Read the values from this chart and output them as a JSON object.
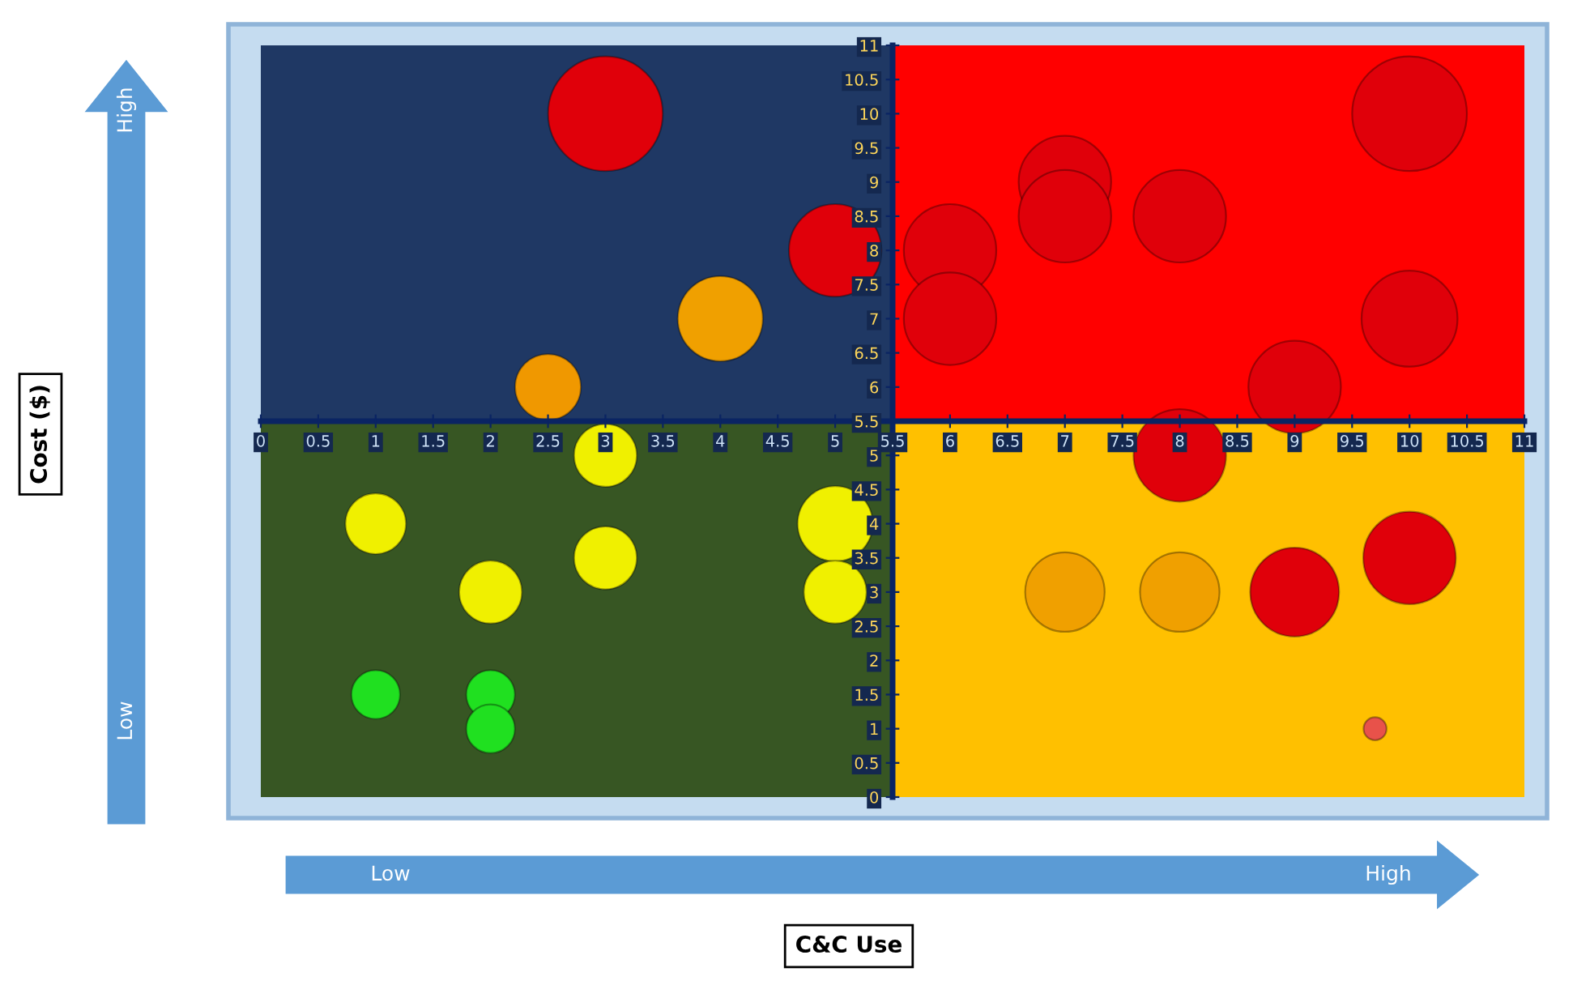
{
  "chart_data": {
    "type": "bubble",
    "annotations": [
      "High",
      "Low",
      "Low",
      "High",
      "Cost ($)",
      "C&C Use"
    ],
    "series": [
      {
        "x": [
          3,
          5,
          4,
          2.5,
          6,
          6,
          7,
          7,
          8,
          10,
          10,
          9,
          8,
          3,
          1,
          3,
          5,
          2,
          5,
          1,
          2,
          2,
          7,
          8,
          9,
          10,
          9.7
        ],
        "values": [
          10,
          8,
          7,
          6,
          8,
          7,
          9,
          8.5,
          8.5,
          10,
          7,
          6,
          5,
          5,
          4,
          3.5,
          4,
          3,
          3,
          1.5,
          1.5,
          1,
          3,
          3,
          3,
          3.5,
          1
        ],
        "sizes": [
          1,
          0.65,
          0.55,
          0.33,
          0.65,
          0.65,
          0.65,
          0.65,
          0.65,
          1,
          0.7,
          0.65,
          0.65,
          0.3,
          0.28,
          0.3,
          0.43,
          0.3,
          0.3,
          0.18,
          0.18,
          0.18,
          0.48,
          0.48,
          0.6,
          0.65,
          0.04
        ],
        "colors": [
          "#e0000a",
          "#e0000a",
          "#f0a000",
          "#f09800",
          "#e0000a",
          "#e0000a",
          "#e0000a",
          "#e0000a",
          "#e0000a",
          "#e0000a",
          "#e0000a",
          "#e0000a",
          "#e0000a",
          "#f0f000",
          "#f0f000",
          "#f0f000",
          "#f0f000",
          "#f0f000",
          "#f0f000",
          "#20e020",
          "#20e020",
          "#20e020",
          "#f0a000",
          "#f0a000",
          "#e0000a",
          "#e0000a",
          "#e8524a"
        ]
      }
    ],
    "xlim": [
      0,
      11
    ],
    "ylim": [
      0,
      11
    ],
    "xticks": [
      0,
      0.5,
      1,
      1.5,
      2,
      2.5,
      3,
      3.5,
      4,
      4.5,
      5,
      5.5,
      6,
      6.5,
      7,
      7.5,
      8,
      8.5,
      9,
      9.5,
      10,
      10.5,
      11
    ],
    "yticks": [
      0,
      0.5,
      1,
      1.5,
      2,
      2.5,
      3,
      3.5,
      4,
      4.5,
      5,
      5.5,
      6,
      6.5,
      7,
      7.5,
      8,
      8.5,
      9,
      9.5,
      10,
      10.5,
      11
    ],
    "grid": false,
    "legend": false
  }
}
